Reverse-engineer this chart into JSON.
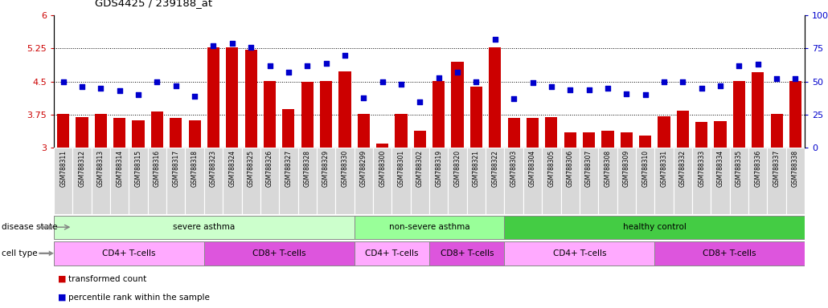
{
  "title": "GDS4425 / 239188_at",
  "samples": [
    "GSM788311",
    "GSM788312",
    "GSM788313",
    "GSM788314",
    "GSM788315",
    "GSM788316",
    "GSM788317",
    "GSM788318",
    "GSM788323",
    "GSM788324",
    "GSM788325",
    "GSM788326",
    "GSM788327",
    "GSM788328",
    "GSM788329",
    "GSM788330",
    "GSM788299",
    "GSM788300",
    "GSM788301",
    "GSM788302",
    "GSM788319",
    "GSM788320",
    "GSM788321",
    "GSM788322",
    "GSM788303",
    "GSM788304",
    "GSM788305",
    "GSM788306",
    "GSM788307",
    "GSM788308",
    "GSM788309",
    "GSM788310",
    "GSM788331",
    "GSM788332",
    "GSM788333",
    "GSM788334",
    "GSM788335",
    "GSM788336",
    "GSM788337",
    "GSM788338"
  ],
  "bar_values": [
    3.77,
    3.7,
    3.77,
    3.68,
    3.63,
    3.82,
    3.68,
    3.62,
    5.27,
    5.27,
    5.22,
    4.52,
    3.87,
    4.5,
    4.52,
    4.73,
    3.77,
    3.1,
    3.76,
    3.38,
    4.52,
    4.95,
    4.38,
    5.27,
    3.68,
    3.68,
    3.7,
    3.35,
    3.35,
    3.38,
    3.35,
    3.28,
    3.72,
    3.85,
    3.58,
    3.6,
    4.52,
    4.72,
    3.77,
    4.52
  ],
  "dot_values": [
    50,
    46,
    45,
    43,
    40,
    50,
    47,
    39,
    77,
    79,
    76,
    62,
    57,
    62,
    64,
    70,
    38,
    50,
    48,
    35,
    53,
    57,
    50,
    82,
    37,
    49,
    46,
    44,
    44,
    45,
    41,
    40,
    50,
    50,
    45,
    47,
    62,
    63,
    52,
    52
  ],
  "ylim_left": [
    3.0,
    6.0
  ],
  "ylim_right": [
    0,
    100
  ],
  "yticks_left": [
    3.0,
    3.75,
    4.5,
    5.25,
    6.0
  ],
  "yticks_right": [
    0,
    25,
    50,
    75,
    100
  ],
  "ytick_labels_left": [
    "3",
    "3.75",
    "4.5",
    "5.25",
    "6"
  ],
  "ytick_labels_right": [
    "0",
    "25",
    "50",
    "75",
    "100%"
  ],
  "hlines": [
    3.75,
    4.5,
    5.25
  ],
  "bar_color": "#cc0000",
  "dot_color": "#0000cc",
  "disease_state_groups": [
    {
      "label": "severe asthma",
      "start": 0,
      "end": 15,
      "color": "#ccffcc"
    },
    {
      "label": "non-severe asthma",
      "start": 16,
      "end": 23,
      "color": "#99ff99"
    },
    {
      "label": "healthy control",
      "start": 24,
      "end": 39,
      "color": "#44cc44"
    }
  ],
  "cell_type_groups": [
    {
      "label": "CD4+ T-cells",
      "start": 0,
      "end": 7,
      "color": "#ffaaff"
    },
    {
      "label": "CD8+ T-cells",
      "start": 8,
      "end": 15,
      "color": "#dd55dd"
    },
    {
      "label": "CD4+ T-cells",
      "start": 16,
      "end": 19,
      "color": "#ffaaff"
    },
    {
      "label": "CD8+ T-cells",
      "start": 20,
      "end": 23,
      "color": "#dd55dd"
    },
    {
      "label": "CD4+ T-cells",
      "start": 24,
      "end": 31,
      "color": "#ffaaff"
    },
    {
      "label": "CD8+ T-cells",
      "start": 32,
      "end": 39,
      "color": "#dd55dd"
    }
  ],
  "tick_label_bg": "#d8d8d8",
  "figure_width": 10.3,
  "figure_height": 3.84,
  "dpi": 100
}
